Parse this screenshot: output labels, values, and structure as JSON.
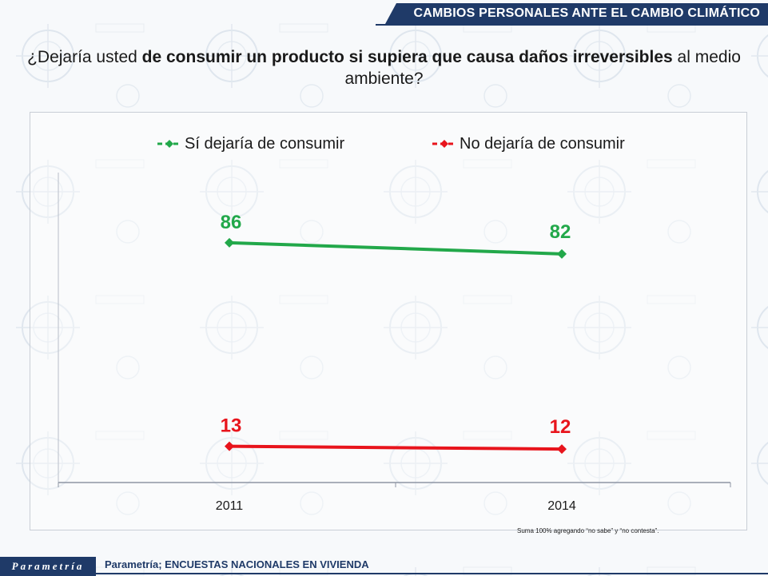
{
  "header": {
    "title": "CAMBIOS PERSONALES ANTE EL CAMBIO CLIMÁTICO"
  },
  "question": {
    "prefix": "¿Dejaría usted ",
    "bold": "de consumir un producto si supiera que causa daños irreversibles",
    "suffix": " al medio ambiente?"
  },
  "footnote": "Suma 100%  agregando “no sabe” y “no contesta”.",
  "footer": {
    "brand": "Parametría",
    "source": "Parametría; ENCUESTAS NACIONALES EN VIVIENDA"
  },
  "colors": {
    "green": "#22a84a",
    "red": "#e8141c",
    "navy": "#1f3a68"
  },
  "chart_data": {
    "type": "line",
    "title": "",
    "xlabel": "",
    "ylabel": "",
    "categories": [
      "2011",
      "2014"
    ],
    "ylim": [
      0,
      100
    ],
    "grid": false,
    "legend_position": "top",
    "series": [
      {
        "name": "Sí dejaría de consumir",
        "values": [
          86,
          82
        ],
        "color": "#22a84a"
      },
      {
        "name": "No dejaría de consumir",
        "values": [
          13,
          12
        ],
        "color": "#e8141c"
      }
    ]
  }
}
